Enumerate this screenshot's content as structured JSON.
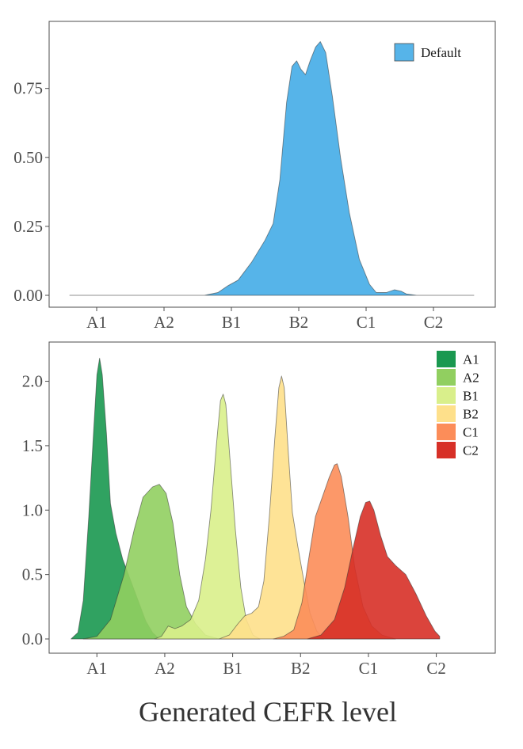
{
  "xlabel": "Generated CEFR level",
  "chart_data": [
    {
      "type": "area",
      "title": "",
      "xlabel": "",
      "ylabel": "",
      "categories": [
        "A1",
        "A2",
        "B1",
        "B2",
        "C1",
        "C2"
      ],
      "xlim": [
        0.6,
        6.6
      ],
      "ylim": [
        0,
        0.95
      ],
      "yticks": [
        0.0,
        0.25,
        0.5,
        0.75
      ],
      "ytick_labels": [
        "0.00",
        "0.25",
        "0.50",
        "0.75"
      ],
      "grid": false,
      "legend": "top-right",
      "series": [
        {
          "name": "Default",
          "color": "#56B4E9",
          "points": [
            [
              0.6,
              0
            ],
            [
              2.6,
              0
            ],
            [
              2.8,
              0.01
            ],
            [
              2.95,
              0.035
            ],
            [
              3.1,
              0.055
            ],
            [
              3.3,
              0.12
            ],
            [
              3.5,
              0.2
            ],
            [
              3.62,
              0.26
            ],
            [
              3.72,
              0.42
            ],
            [
              3.82,
              0.7
            ],
            [
              3.9,
              0.83
            ],
            [
              3.97,
              0.85
            ],
            [
              4.03,
              0.82
            ],
            [
              4.1,
              0.8
            ],
            [
              4.17,
              0.85
            ],
            [
              4.25,
              0.9
            ],
            [
              4.32,
              0.92
            ],
            [
              4.4,
              0.88
            ],
            [
              4.5,
              0.72
            ],
            [
              4.62,
              0.5
            ],
            [
              4.75,
              0.3
            ],
            [
              4.9,
              0.13
            ],
            [
              5.05,
              0.04
            ],
            [
              5.15,
              0.01
            ],
            [
              5.3,
              0.01
            ],
            [
              5.42,
              0.02
            ],
            [
              5.52,
              0.015
            ],
            [
              5.6,
              0.005
            ],
            [
              5.75,
              0
            ],
            [
              6.6,
              0
            ]
          ]
        }
      ]
    },
    {
      "type": "area",
      "title": "",
      "xlabel": "",
      "ylabel": "",
      "categories": [
        "A1",
        "A2",
        "B1",
        "B2",
        "C1",
        "C2"
      ],
      "xlim": [
        0.6,
        6.6
      ],
      "ylim": [
        0,
        2.2
      ],
      "yticks": [
        0.0,
        0.5,
        1.0,
        1.5,
        2.0
      ],
      "ytick_labels": [
        "0.0",
        "0.5",
        "1.0",
        "1.5",
        "2.0"
      ],
      "grid": false,
      "legend": "top-right",
      "series": [
        {
          "name": "A1",
          "color": "#1A9850",
          "points": [
            [
              0.62,
              0
            ],
            [
              0.72,
              0.05
            ],
            [
              0.8,
              0.3
            ],
            [
              0.88,
              0.95
            ],
            [
              0.95,
              1.6
            ],
            [
              1.0,
              2.05
            ],
            [
              1.04,
              2.18
            ],
            [
              1.08,
              2.05
            ],
            [
              1.14,
              1.6
            ],
            [
              1.2,
              1.05
            ],
            [
              1.28,
              0.82
            ],
            [
              1.38,
              0.62
            ],
            [
              1.5,
              0.45
            ],
            [
              1.62,
              0.28
            ],
            [
              1.72,
              0.14
            ],
            [
              1.82,
              0.05
            ],
            [
              1.92,
              0
            ]
          ]
        },
        {
          "name": "A2",
          "color": "#91CF60",
          "points": [
            [
              0.8,
              0
            ],
            [
              1.0,
              0.02
            ],
            [
              1.2,
              0.15
            ],
            [
              1.4,
              0.5
            ],
            [
              1.55,
              0.85
            ],
            [
              1.68,
              1.1
            ],
            [
              1.82,
              1.18
            ],
            [
              1.92,
              1.2
            ],
            [
              2.02,
              1.13
            ],
            [
              2.12,
              0.9
            ],
            [
              2.22,
              0.5
            ],
            [
              2.32,
              0.25
            ],
            [
              2.45,
              0.12
            ],
            [
              2.6,
              0.03
            ],
            [
              2.8,
              0
            ]
          ]
        },
        {
          "name": "B1",
          "color": "#D9EF8B",
          "points": [
            [
              1.85,
              0
            ],
            [
              1.95,
              0.02
            ],
            [
              2.05,
              0.1
            ],
            [
              2.15,
              0.08
            ],
            [
              2.25,
              0.1
            ],
            [
              2.38,
              0.15
            ],
            [
              2.5,
              0.3
            ],
            [
              2.6,
              0.62
            ],
            [
              2.68,
              1.0
            ],
            [
              2.76,
              1.5
            ],
            [
              2.82,
              1.85
            ],
            [
              2.86,
              1.9
            ],
            [
              2.9,
              1.82
            ],
            [
              2.96,
              1.4
            ],
            [
              3.04,
              0.85
            ],
            [
              3.12,
              0.4
            ],
            [
              3.2,
              0.15
            ],
            [
              3.3,
              0.03
            ],
            [
              3.4,
              0
            ]
          ]
        },
        {
          "name": "B2",
          "color": "#FEE08B",
          "points": [
            [
              2.8,
              0
            ],
            [
              2.95,
              0.03
            ],
            [
              3.08,
              0.12
            ],
            [
              3.18,
              0.18
            ],
            [
              3.28,
              0.2
            ],
            [
              3.38,
              0.25
            ],
            [
              3.46,
              0.45
            ],
            [
              3.54,
              0.95
            ],
            [
              3.62,
              1.55
            ],
            [
              3.68,
              1.95
            ],
            [
              3.72,
              2.04
            ],
            [
              3.76,
              1.95
            ],
            [
              3.82,
              1.45
            ],
            [
              3.88,
              0.98
            ],
            [
              3.96,
              0.72
            ],
            [
              4.05,
              0.45
            ],
            [
              4.14,
              0.2
            ],
            [
              4.24,
              0.06
            ],
            [
              4.34,
              0
            ]
          ]
        },
        {
          "name": "C1",
          "color": "#FC8D59",
          "points": [
            [
              3.6,
              0
            ],
            [
              3.75,
              0.02
            ],
            [
              3.9,
              0.07
            ],
            [
              4.02,
              0.28
            ],
            [
              4.12,
              0.62
            ],
            [
              4.22,
              0.95
            ],
            [
              4.32,
              1.1
            ],
            [
              4.42,
              1.25
            ],
            [
              4.5,
              1.35
            ],
            [
              4.54,
              1.36
            ],
            [
              4.6,
              1.26
            ],
            [
              4.7,
              0.95
            ],
            [
              4.8,
              0.55
            ],
            [
              4.92,
              0.25
            ],
            [
              5.05,
              0.1
            ],
            [
              5.2,
              0.03
            ],
            [
              5.4,
              0
            ]
          ]
        },
        {
          "name": "C2",
          "color": "#D73027",
          "points": [
            [
              4.1,
              0
            ],
            [
              4.3,
              0.03
            ],
            [
              4.5,
              0.15
            ],
            [
              4.65,
              0.4
            ],
            [
              4.78,
              0.72
            ],
            [
              4.88,
              0.95
            ],
            [
              4.96,
              1.06
            ],
            [
              5.02,
              1.07
            ],
            [
              5.08,
              1.0
            ],
            [
              5.18,
              0.8
            ],
            [
              5.28,
              0.64
            ],
            [
              5.4,
              0.57
            ],
            [
              5.55,
              0.5
            ],
            [
              5.7,
              0.35
            ],
            [
              5.85,
              0.18
            ],
            [
              5.98,
              0.06
            ],
            [
              6.05,
              0.02
            ],
            [
              6.05,
              0
            ]
          ]
        }
      ]
    }
  ]
}
